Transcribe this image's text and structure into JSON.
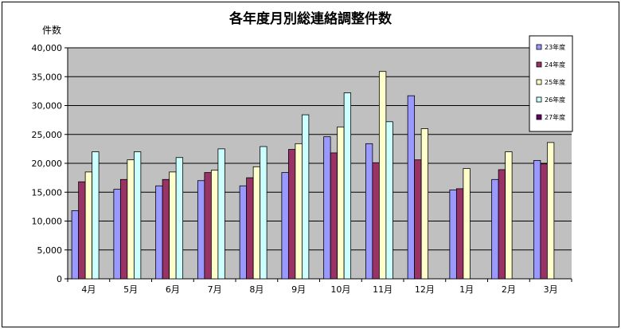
{
  "chart_data": {
    "type": "bar",
    "title": "各年度月別総連絡調整件数",
    "ylabel": "件数",
    "xlabel": "",
    "ylim": [
      0,
      40000
    ],
    "yticks": [
      0,
      5000,
      10000,
      15000,
      20000,
      25000,
      30000,
      35000,
      40000
    ],
    "ytick_labels": [
      "0",
      "5,000",
      "10,000",
      "15,000",
      "20,000",
      "25,000",
      "30,000",
      "35,000",
      "40,000"
    ],
    "grid": true,
    "legend_position": "top-right",
    "categories": [
      "4月",
      "5月",
      "6月",
      "7月",
      "8月",
      "9月",
      "10月",
      "11月",
      "12月",
      "1月",
      "2月",
      "3月"
    ],
    "series": [
      {
        "name": "23年度",
        "color": "#9999FF",
        "values": [
          11800,
          15500,
          16100,
          17000,
          16100,
          18400,
          24600,
          23400,
          31700,
          15400,
          17200,
          20500
        ]
      },
      {
        "name": "24年度",
        "color": "#993366",
        "values": [
          16800,
          17200,
          17200,
          18400,
          17500,
          22400,
          21800,
          20100,
          20600,
          15600,
          18900,
          19900
        ]
      },
      {
        "name": "25年度",
        "color": "#FFFFCC",
        "values": [
          18500,
          20600,
          18500,
          18800,
          19400,
          23400,
          26300,
          35900,
          26000,
          19100,
          22000,
          23600
        ]
      },
      {
        "name": "26年度",
        "color": "#CCFFFF",
        "values": [
          22000,
          22000,
          21000,
          22500,
          22900,
          28400,
          32200,
          27200,
          null,
          null,
          null,
          null
        ]
      },
      {
        "name": "27年度",
        "color": "#660066",
        "values": [
          null,
          null,
          null,
          null,
          null,
          null,
          null,
          null,
          null,
          null,
          null,
          null
        ]
      }
    ],
    "plot_background": "#C0C0C0"
  }
}
